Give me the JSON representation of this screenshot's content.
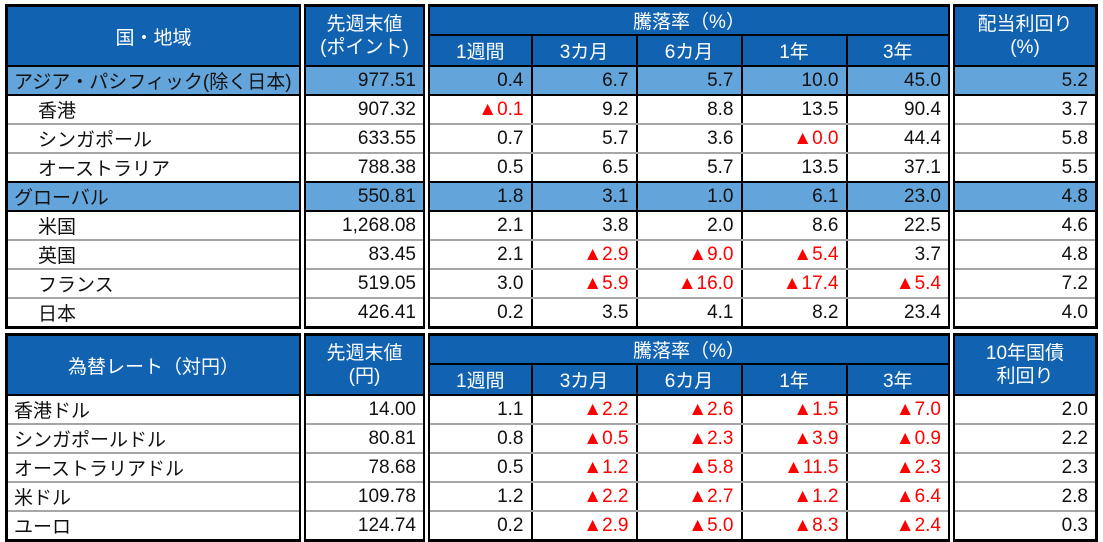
{
  "colors": {
    "header_bg": "#1163B2",
    "header_text": "#FFFFFF",
    "highlight_row_bg": "#63A4DB",
    "negative_text": "#FE0000",
    "body_text": "#111111",
    "row_separator": "#A6A6A6",
    "border": "#000000"
  },
  "equity_table": {
    "header": {
      "label": "国・地域",
      "value_col_line1": "先週末値",
      "value_col_line2": "(ポイント)",
      "change_group": "騰落率（%）",
      "periods": [
        "1週間",
        "3カ月",
        "6カ月",
        "1年",
        "3年"
      ],
      "yield_col_line1": "配当利回り",
      "yield_col_line2": "(%)"
    },
    "rows": [
      {
        "label": "アジア・パシフィック(除く日本)",
        "indent": false,
        "highlight": true,
        "value": "977.51",
        "changes": [
          "0.4",
          "6.7",
          "5.7",
          "10.0",
          "45.0"
        ],
        "yield": "5.2"
      },
      {
        "label": "香港",
        "indent": true,
        "highlight": false,
        "value": "907.32",
        "changes": [
          "▲0.1",
          "9.2",
          "8.8",
          "13.5",
          "90.4"
        ],
        "yield": "3.7"
      },
      {
        "label": "シンガポール",
        "indent": true,
        "highlight": false,
        "value": "633.55",
        "changes": [
          "0.7",
          "5.7",
          "3.6",
          "▲0.0",
          "44.4"
        ],
        "yield": "5.8"
      },
      {
        "label": "オーストラリア",
        "indent": true,
        "highlight": false,
        "value": "788.38",
        "changes": [
          "0.5",
          "6.5",
          "5.7",
          "13.5",
          "37.1"
        ],
        "yield": "5.5"
      },
      {
        "label": "グローバル",
        "indent": false,
        "highlight": true,
        "value": "550.81",
        "changes": [
          "1.8",
          "3.1",
          "1.0",
          "6.1",
          "23.0"
        ],
        "yield": "4.8"
      },
      {
        "label": "米国",
        "indent": true,
        "highlight": false,
        "value": "1,268.08",
        "changes": [
          "2.1",
          "3.8",
          "2.0",
          "8.6",
          "22.5"
        ],
        "yield": "4.6"
      },
      {
        "label": "英国",
        "indent": true,
        "highlight": false,
        "value": "83.45",
        "changes": [
          "2.1",
          "▲2.9",
          "▲9.0",
          "▲5.4",
          "3.7"
        ],
        "yield": "4.8"
      },
      {
        "label": "フランス",
        "indent": true,
        "highlight": false,
        "value": "519.05",
        "changes": [
          "3.0",
          "▲5.9",
          "▲16.0",
          "▲17.4",
          "▲5.4"
        ],
        "yield": "7.2"
      },
      {
        "label": "日本",
        "indent": true,
        "highlight": false,
        "value": "426.41",
        "changes": [
          "0.2",
          "3.5",
          "4.1",
          "8.2",
          "23.4"
        ],
        "yield": "4.0"
      }
    ]
  },
  "fx_table": {
    "header": {
      "label": "為替レート（対円）",
      "value_col_line1": "先週末値",
      "value_col_line2": "(円)",
      "change_group": "騰落率（%）",
      "periods": [
        "1週間",
        "3カ月",
        "6カ月",
        "1年",
        "3年"
      ],
      "yield_col_line1": "10年国債",
      "yield_col_line2": "利回り"
    },
    "rows": [
      {
        "label": "香港ドル",
        "indent": false,
        "highlight": false,
        "value": "14.00",
        "changes": [
          "1.1",
          "▲2.2",
          "▲2.6",
          "▲1.5",
          "▲7.0"
        ],
        "yield": "2.0"
      },
      {
        "label": "シンガポールドル",
        "indent": false,
        "highlight": false,
        "value": "80.81",
        "changes": [
          "0.8",
          "▲0.5",
          "▲2.3",
          "▲3.9",
          "▲0.9"
        ],
        "yield": "2.2"
      },
      {
        "label": "オーストラリアドル",
        "indent": false,
        "highlight": false,
        "value": "78.68",
        "changes": [
          "0.5",
          "▲1.2",
          "▲5.8",
          "▲11.5",
          "▲2.3"
        ],
        "yield": "2.3"
      },
      {
        "label": "米ドル",
        "indent": false,
        "highlight": false,
        "value": "109.78",
        "changes": [
          "1.2",
          "▲2.2",
          "▲2.7",
          "▲1.2",
          "▲6.4"
        ],
        "yield": "2.8"
      },
      {
        "label": "ユーロ",
        "indent": false,
        "highlight": false,
        "value": "124.74",
        "changes": [
          "0.2",
          "▲2.9",
          "▲5.0",
          "▲8.3",
          "▲2.4"
        ],
        "yield": "0.3"
      }
    ]
  }
}
